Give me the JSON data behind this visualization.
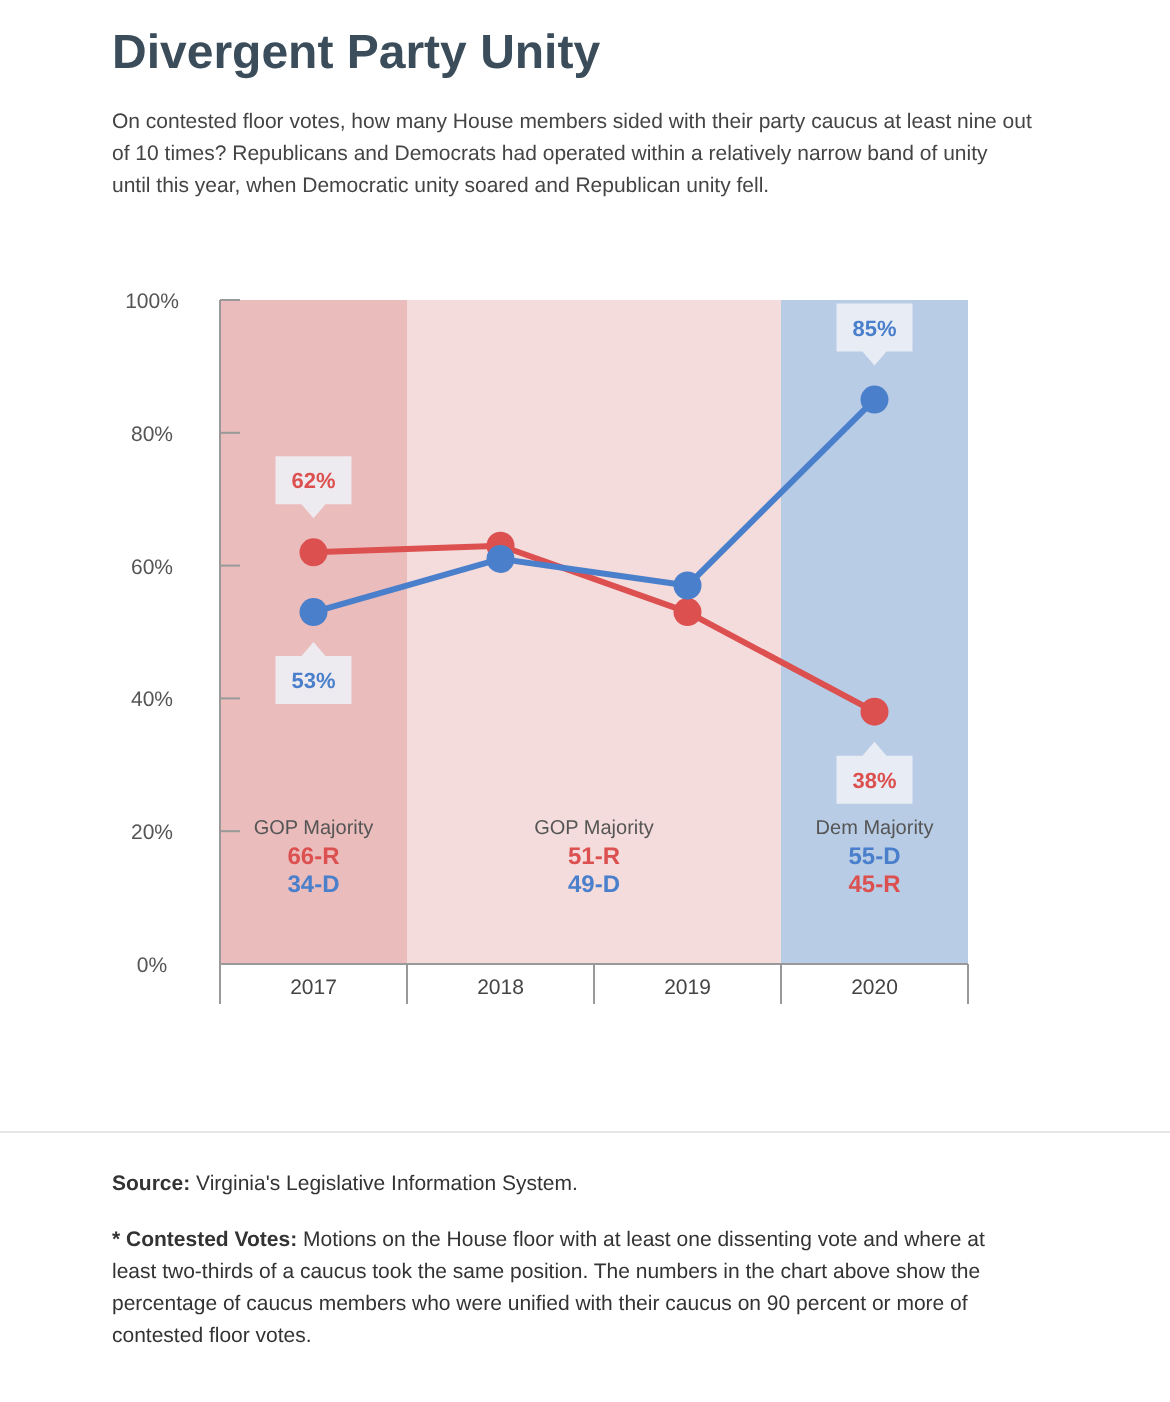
{
  "chart_data": {
    "type": "line",
    "title": "Divergent Party Unity",
    "subtitle": "On contested floor votes, how many House members sided with their party caucus at least nine out of 10 times? Republicans and Democrats had operated within a relatively narrow band of unity until this year, when Democratic unity soared and Republican unity fell.",
    "categories": [
      "2017",
      "2018",
      "2019",
      "2020"
    ],
    "series": [
      {
        "color": "#dc5050",
        "values": [
          62,
          63,
          53,
          38
        ],
        "value_labels": [
          "62%",
          null,
          null,
          "38%"
        ]
      },
      {
        "color": "#4a7fcb",
        "values": [
          53,
          61,
          57,
          85
        ],
        "value_labels": [
          "53%",
          null,
          null,
          "85%"
        ]
      }
    ],
    "ylim": [
      0,
      100
    ],
    "yticks": [
      {
        "value": 0,
        "label": "0%"
      },
      {
        "value": 20,
        "label": "20%"
      },
      {
        "value": 40,
        "label": "40%"
      },
      {
        "value": 60,
        "label": "60%"
      },
      {
        "value": 80,
        "label": "80%"
      },
      {
        "value": 100,
        "label": "100%"
      }
    ],
    "marker": "circle",
    "line_style": "solid",
    "bands": [
      {
        "axis": "x",
        "from": "2017",
        "to": "2017",
        "label": "GOP Majority",
        "color": "#ebbcbc"
      },
      {
        "axis": "x",
        "from": "2018",
        "to": "2019",
        "label": "GOP Majority",
        "color": "#f5dcdc"
      },
      {
        "axis": "x",
        "from": "2020",
        "to": "2020",
        "label": "Dem Majority",
        "color": "#b9cce6"
      }
    ],
    "annotations": [
      "66-R",
      "34-D",
      "51-R",
      "49-D",
      "55-D",
      "45-R",
      "Source: Virginia's Legislative Information System.",
      "* Contested Votes: Motions on the House floor with at least one dissenting vote and where at least two-thirds of a caucus took the same position. The numbers in the chart above show the percentage of caucus members who were unified with their caucus on 90 percent or more of contested floor votes."
    ]
  }
}
